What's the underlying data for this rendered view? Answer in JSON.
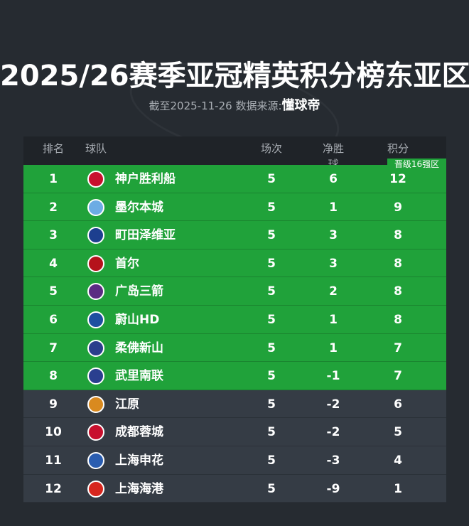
{
  "title": "2025/26赛季亚冠精英积分榜东亚区",
  "subtitle": {
    "date": "截至2025-11-26 数据来源:",
    "source": "懂球帝"
  },
  "colors": {
    "qualified": "#20a23a",
    "other": "#353c45",
    "header": "#1f2328",
    "background": "#262b31"
  },
  "headers": {
    "rank": "排名",
    "team": "球队",
    "played": "场次",
    "gd": "净胜球",
    "points": "积分"
  },
  "badge": "晋级16强区",
  "rows": [
    {
      "rank": "1",
      "team": "神户胜利船",
      "played": "5",
      "gd": "6",
      "points": "12",
      "qualified": true,
      "logo": "#c8102e"
    },
    {
      "rank": "2",
      "team": "墨尔本城",
      "played": "5",
      "gd": "1",
      "points": "9",
      "qualified": true,
      "logo": "#6cace4"
    },
    {
      "rank": "3",
      "team": "町田泽维亚",
      "played": "5",
      "gd": "3",
      "points": "8",
      "qualified": true,
      "logo": "#1d3f8f"
    },
    {
      "rank": "4",
      "team": "首尔",
      "played": "5",
      "gd": "3",
      "points": "8",
      "qualified": true,
      "logo": "#b5121b"
    },
    {
      "rank": "5",
      "team": "广岛三箭",
      "played": "5",
      "gd": "2",
      "points": "8",
      "qualified": true,
      "logo": "#5b2c83"
    },
    {
      "rank": "6",
      "team": "蔚山HD",
      "played": "5",
      "gd": "1",
      "points": "8",
      "qualified": true,
      "logo": "#1e4fa0"
    },
    {
      "rank": "7",
      "team": "柔佛新山",
      "played": "5",
      "gd": "1",
      "points": "7",
      "qualified": true,
      "logo": "#2b3e8c"
    },
    {
      "rank": "8",
      "team": "武里南联",
      "played": "5",
      "gd": "-1",
      "points": "7",
      "qualified": true,
      "logo": "#2a3f8f"
    },
    {
      "rank": "9",
      "team": "江原",
      "played": "5",
      "gd": "-2",
      "points": "6",
      "qualified": false,
      "logo": "#d98a1f"
    },
    {
      "rank": "10",
      "team": "成都蓉城",
      "played": "5",
      "gd": "-2",
      "points": "5",
      "qualified": false,
      "logo": "#c8102e"
    },
    {
      "rank": "11",
      "team": "上海申花",
      "played": "5",
      "gd": "-3",
      "points": "4",
      "qualified": false,
      "logo": "#2a5db0"
    },
    {
      "rank": "12",
      "team": "上海海港",
      "played": "5",
      "gd": "-9",
      "points": "1",
      "qualified": false,
      "logo": "#d7261e"
    }
  ]
}
